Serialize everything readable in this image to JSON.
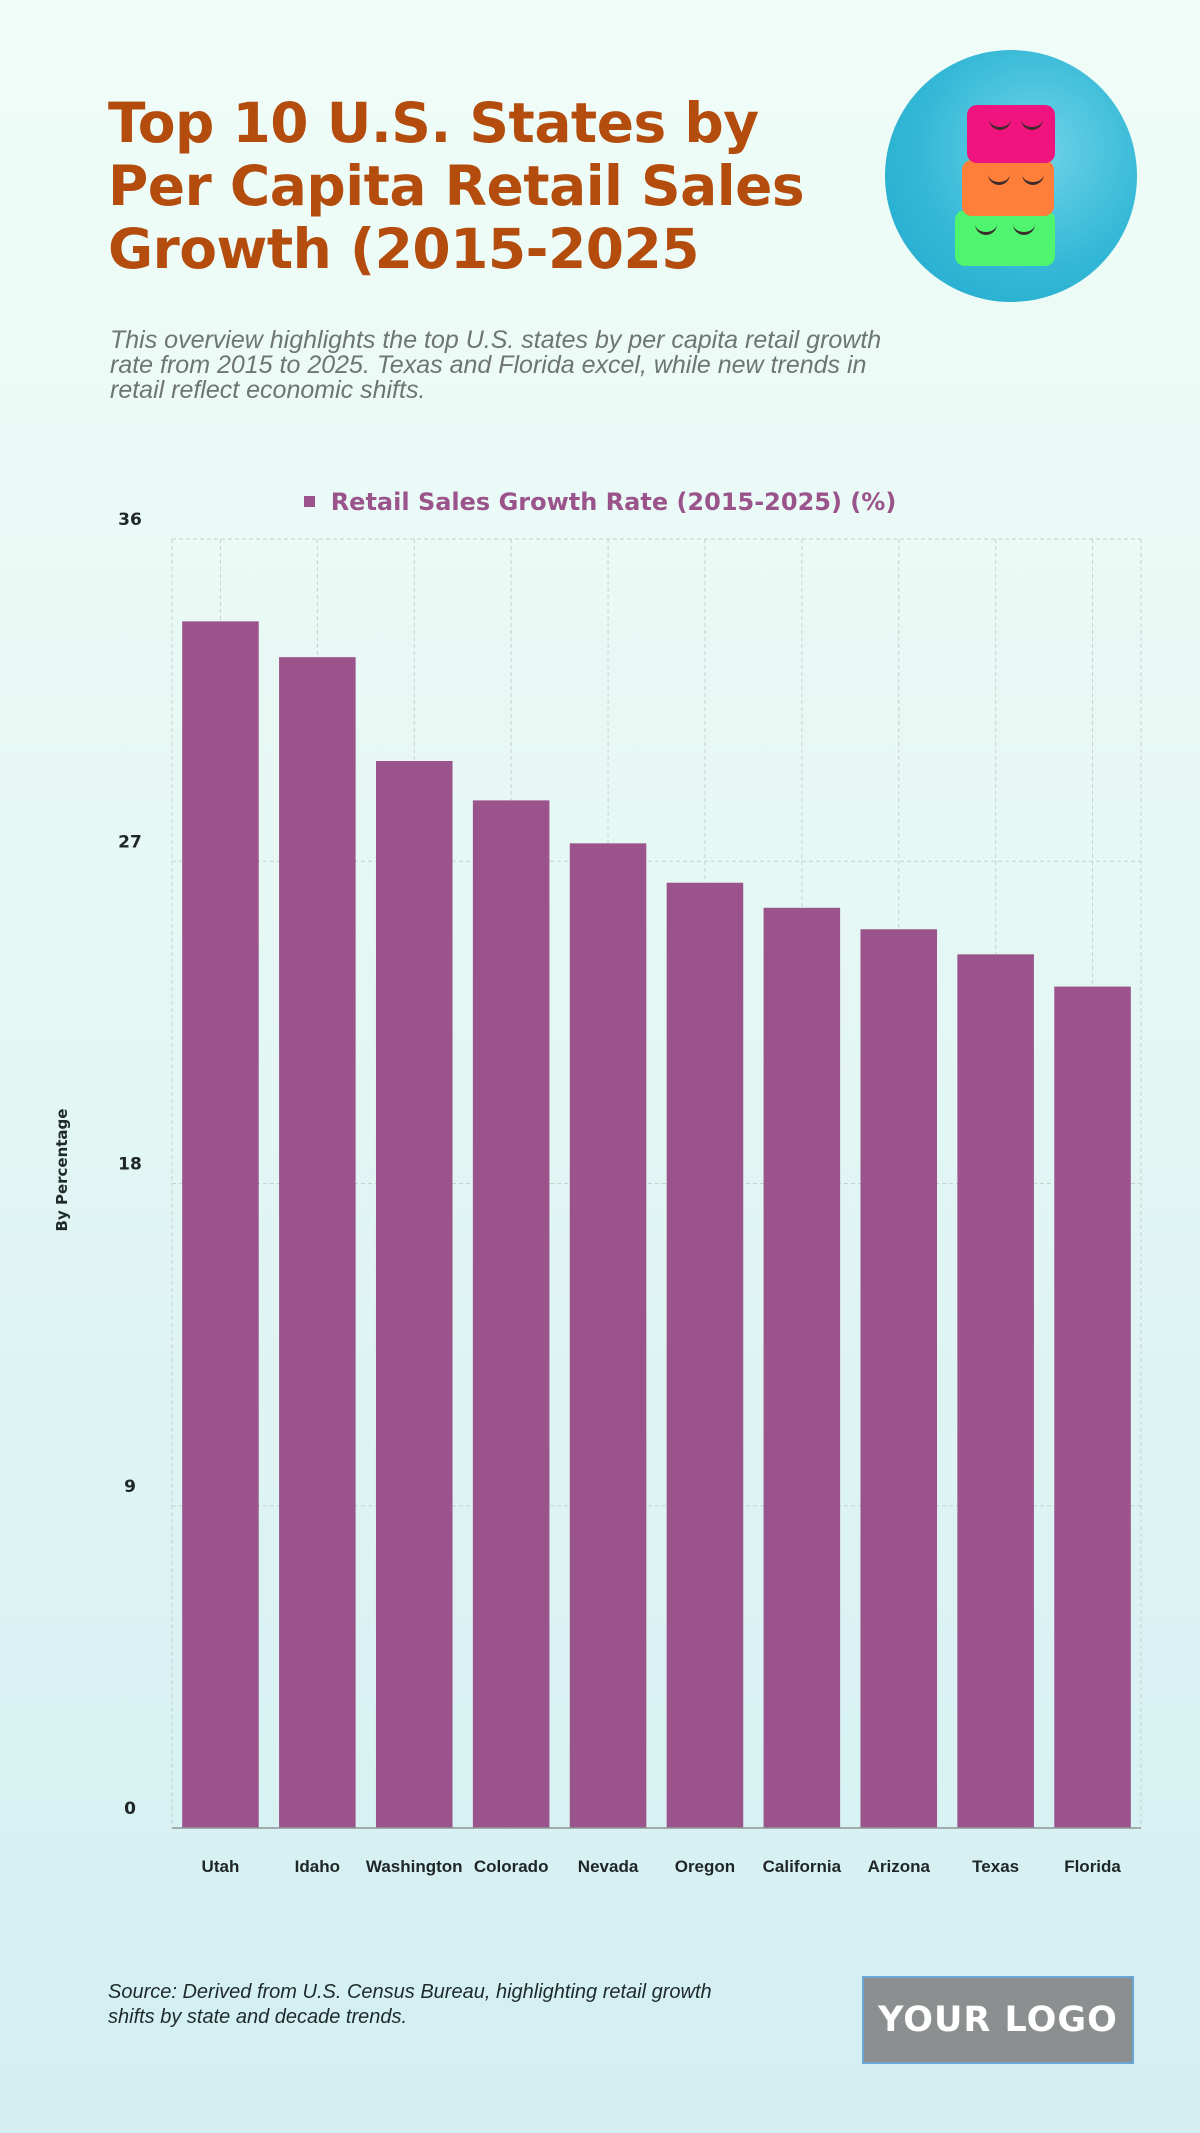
{
  "header": {
    "title": "Top 10 U.S. States by Per Capita Retail Sales Growth (2015-2025",
    "subtitle": "This overview highlights the top U.S. states by per capita retail growth rate from 2015 to 2025. Texas and Florida excel, while new trends in retail reflect economic shifts.",
    "hero_image_alt": "Stacked pink, orange and green cosmetic bags with eyelash embroidery on blue background"
  },
  "footer": {
    "source": "Source: Derived from U.S. Census Bureau, highlighting retail growth shifts by state and decade trends.",
    "logo_text": "YOUR LOGO"
  },
  "colors": {
    "title": "#b34c0d",
    "bar": "#9b538b",
    "subtitle": "#6e7572"
  },
  "chart_data": {
    "type": "bar",
    "title": "",
    "legend": [
      "Retail Sales Growth Rate (2015-2025) (%)"
    ],
    "legend_position": "top-center",
    "xlabel": "",
    "ylabel": "By Percentage",
    "categories": [
      "Utah",
      "Idaho",
      "Washington",
      "Colorado",
      "Nevada",
      "Oregon",
      "California",
      "Arizona",
      "Texas",
      "Florida"
    ],
    "series": [
      {
        "name": "Retail Sales Growth Rate (2015-2025) (%)",
        "values": [
          33.7,
          32.7,
          29.8,
          28.7,
          27.5,
          26.4,
          25.7,
          25.1,
          24.4,
          23.5
        ]
      }
    ],
    "ylim": [
      0,
      36
    ],
    "yticks": [
      0,
      9,
      18,
      27,
      36
    ],
    "grid": true
  }
}
